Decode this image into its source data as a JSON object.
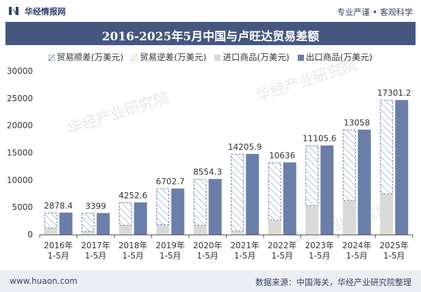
{
  "header": {
    "brand": "华经情报网",
    "tagline": "专业严谨 • 客观科学"
  },
  "watermark": "华经产业研究院",
  "footer": {
    "url": "www.huaon.com",
    "source": "数据来源：中国海关，华经产业研究院整理"
  },
  "colors": {
    "surplus": "#6a7ea8",
    "deficit": "#e6dfb8",
    "imports": "#d9d9d9",
    "exports": "#6a7ea8",
    "title_bg": "#46577f"
  },
  "chart_data": {
    "type": "bar",
    "title": "2016-2025年5月中国与卢旺达贸易差额",
    "categories": [
      "2016年\n1-5月",
      "2017年\n1-5月",
      "2018年\n1-5月",
      "2019年\n1-5月",
      "2020年\n1-5月",
      "2021年\n1-5月",
      "2022年\n1-5月",
      "2023年\n1-5月",
      "2024年\n1-5月",
      "2025年\n1-5月"
    ],
    "legend": [
      "贸易顺差(万美元)",
      "贸易逆差(万美元)",
      "进口商品(万美元)",
      "出口商品(万美元)"
    ],
    "series": [
      {
        "name": "贸易顺差(万美元)",
        "values": [
          2878.4,
          3399,
          4252.6,
          6702.7,
          8554.3,
          14205.9,
          10636,
          11105.6,
          13058,
          17301.2
        ]
      },
      {
        "name": "贸易逆差(万美元)",
        "values": [
          0,
          0,
          0,
          0,
          0,
          0,
          0,
          0,
          0,
          0
        ]
      },
      {
        "name": "进口商品(万美元)",
        "values": [
          1150,
          550,
          1650,
          1750,
          1650,
          600,
          2600,
          5250,
          6200,
          7400
        ]
      },
      {
        "name": "出口商品(万美元)",
        "values": [
          4030,
          3950,
          5900,
          8450,
          10200,
          14800,
          13240,
          16360,
          19260,
          24700
        ]
      }
    ],
    "data_labels": [
      "2878.4",
      "3399",
      "4252.6",
      "6702.7",
      "8554.3",
      "14205.9",
      "10636",
      "11105.6",
      "13058",
      "17301.2"
    ],
    "ylim": [
      0,
      30000
    ],
    "yticks": [
      0,
      5000,
      10000,
      15000,
      20000,
      25000,
      30000
    ],
    "xlabel": "",
    "ylabel": "",
    "grid": false,
    "legend_position": "top"
  }
}
